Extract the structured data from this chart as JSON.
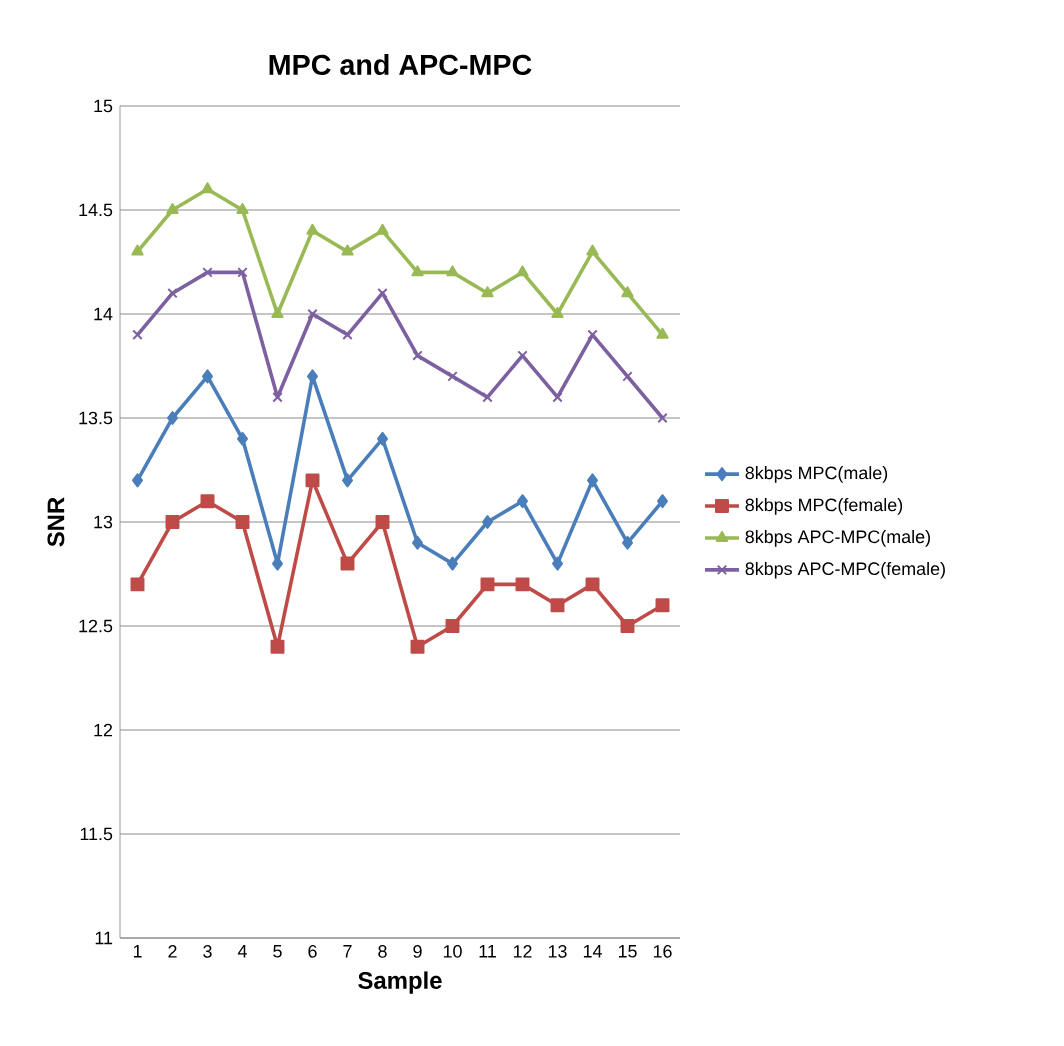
{
  "chart_data": {
    "type": "line",
    "title": "MPC and APC-MPC",
    "xlabel": "Sample",
    "ylabel": "SNR",
    "categories": [
      "1",
      "2",
      "3",
      "4",
      "5",
      "6",
      "7",
      "8",
      "9",
      "10",
      "11",
      "12",
      "13",
      "14",
      "15",
      "16"
    ],
    "ylim": [
      11,
      15
    ],
    "yticks": [
      11,
      11.5,
      12,
      12.5,
      13,
      13.5,
      14,
      14.5,
      15
    ],
    "grid": "y",
    "legend": "right",
    "series": [
      {
        "name": "8kbps MPC(male)",
        "color": "#4a7ebb",
        "marker": "diamond",
        "values": [
          13.2,
          13.5,
          13.7,
          13.4,
          12.8,
          13.7,
          13.2,
          13.4,
          12.9,
          12.8,
          13.0,
          13.1,
          12.8,
          13.2,
          12.9,
          13.1
        ]
      },
      {
        "name": "8kbps MPC(female)",
        "color": "#be4b48",
        "marker": "square",
        "values": [
          12.7,
          13.0,
          13.1,
          13.0,
          12.4,
          13.2,
          12.8,
          13.0,
          12.4,
          12.5,
          12.7,
          12.7,
          12.6,
          12.7,
          12.5,
          12.6
        ]
      },
      {
        "name": "8kbps APC-MPC(male)",
        "color": "#98b954",
        "marker": "triangle",
        "values": [
          14.3,
          14.5,
          14.6,
          14.5,
          14.0,
          14.4,
          14.3,
          14.4,
          14.2,
          14.2,
          14.1,
          14.2,
          14.0,
          14.3,
          14.1,
          13.9
        ]
      },
      {
        "name": "8kbps APC-MPC(female)",
        "color": "#7d60a0",
        "marker": "cross",
        "values": [
          13.9,
          14.1,
          14.2,
          14.2,
          13.6,
          14.0,
          13.9,
          14.1,
          13.8,
          13.7,
          13.6,
          13.8,
          13.6,
          13.9,
          13.7,
          13.5
        ]
      }
    ]
  }
}
